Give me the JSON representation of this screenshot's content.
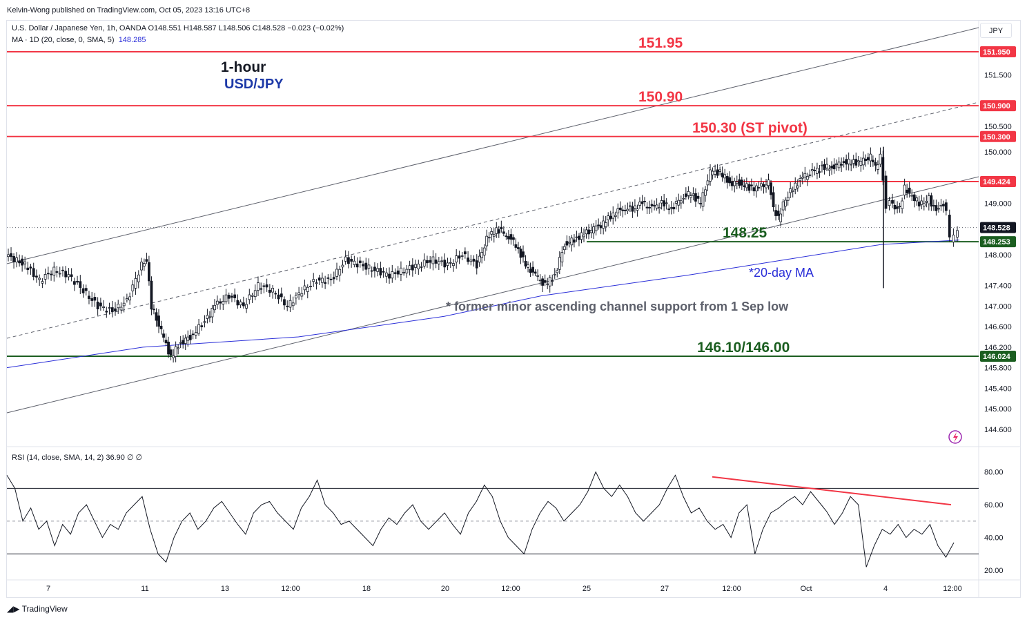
{
  "publisher": "Kelvin-Wong published on TradingView.com, Oct 05, 2023 13:16 UTC+8",
  "legend": {
    "symbol_line": "U.S. Dollar / Japanese Yen, 1h, OANDA  O148.551  H148.587  L148.506  C148.528  −0.023 (−0.02%)",
    "ma_label": "MA · 1D (20, close, 0, SMA, 5)",
    "ma_value": "148.285",
    "rsi_line": "RSI (14, close, SMA, 14, 2)  36.90  ∅  ∅"
  },
  "annotations": {
    "timeframe": "1-hour",
    "symbol": "USD/JPY",
    "currency_button": "JPY",
    "watermark": "TradingView"
  },
  "chart_data": [
    {
      "type": "candlestick",
      "title": "U.S. Dollar / Japanese Yen, 1h, OANDA",
      "ylim": [
        144.4,
        152.3
      ],
      "price_ticks": [
        "151.500",
        "150.500",
        "150.000",
        "149.000",
        "148.000",
        "147.400",
        "147.000",
        "146.600",
        "146.200",
        "145.800",
        "145.400",
        "145.000",
        "144.600"
      ],
      "x_ticks": [
        "7",
        "11",
        "13",
        "12:00",
        "18",
        "20",
        "12:00",
        "25",
        "27",
        "12:00",
        "Oct",
        "4",
        "12:00"
      ],
      "last_price": 148.528,
      "levels": [
        {
          "label": "151.95",
          "value": 151.95,
          "tag": "151.950",
          "color": "#f23645"
        },
        {
          "label": "150.90",
          "value": 150.9,
          "tag": "150.900",
          "color": "#f23645"
        },
        {
          "label": "150.30 (ST pivot)",
          "value": 150.3,
          "tag": "150.300",
          "color": "#f23645"
        },
        {
          "label": "",
          "value": 149.424,
          "tag": "149.424",
          "color": "#f23645"
        },
        {
          "label": "148.25",
          "value": 148.253,
          "tag": "148.253",
          "color": "#1b5e20"
        },
        {
          "label": "146.10/146.00",
          "value": 146.024,
          "tag": "146.024",
          "color": "#1b5e20"
        }
      ],
      "last_price_tag": "148.528",
      "ma_label": "*20-day MA",
      "note": "* former minor ascending channel support from 1 Sep low",
      "series": [
        {
          "name": "USD/JPY",
          "points": [
            [
              0,
              148.0
            ],
            [
              0.02,
              147.8
            ],
            [
              0.035,
              147.5
            ],
            [
              0.05,
              147.7
            ],
            [
              0.065,
              147.6
            ],
            [
              0.08,
              147.3
            ],
            [
              0.095,
              147.0
            ],
            [
              0.11,
              146.9
            ],
            [
              0.125,
              147.1
            ],
            [
              0.14,
              147.8
            ],
            [
              0.145,
              147.9
            ],
            [
              0.15,
              147.0
            ],
            [
              0.16,
              146.5
            ],
            [
              0.17,
              146.0
            ],
            [
              0.18,
              146.3
            ],
            [
              0.19,
              146.4
            ],
            [
              0.205,
              146.7
            ],
            [
              0.215,
              147.0
            ],
            [
              0.23,
              147.2
            ],
            [
              0.245,
              147.0
            ],
            [
              0.26,
              147.4
            ],
            [
              0.275,
              147.3
            ],
            [
              0.29,
              147.0
            ],
            [
              0.305,
              147.3
            ],
            [
              0.32,
              147.5
            ],
            [
              0.335,
              147.5
            ],
            [
              0.35,
              147.9
            ],
            [
              0.365,
              147.8
            ],
            [
              0.38,
              147.7
            ],
            [
              0.395,
              147.6
            ],
            [
              0.41,
              147.7
            ],
            [
              0.425,
              147.8
            ],
            [
              0.44,
              147.9
            ],
            [
              0.455,
              147.8
            ],
            [
              0.47,
              148.0
            ],
            [
              0.485,
              147.8
            ],
            [
              0.495,
              148.3
            ],
            [
              0.505,
              148.5
            ],
            [
              0.515,
              148.4
            ],
            [
              0.525,
              148.2
            ],
            [
              0.535,
              147.8
            ],
            [
              0.545,
              147.6
            ],
            [
              0.555,
              147.4
            ],
            [
              0.565,
              147.6
            ],
            [
              0.575,
              148.2
            ],
            [
              0.585,
              148.3
            ],
            [
              0.595,
              148.4
            ],
            [
              0.605,
              148.5
            ],
            [
              0.615,
              148.6
            ],
            [
              0.625,
              148.8
            ],
            [
              0.635,
              148.9
            ],
            [
              0.645,
              148.9
            ],
            [
              0.655,
              149.0
            ],
            [
              0.665,
              148.9
            ],
            [
              0.675,
              149.0
            ],
            [
              0.685,
              148.9
            ],
            [
              0.695,
              149.1
            ],
            [
              0.705,
              149.2
            ],
            [
              0.715,
              149.0
            ],
            [
              0.725,
              149.6
            ],
            [
              0.735,
              149.6
            ],
            [
              0.745,
              149.4
            ],
            [
              0.755,
              149.4
            ],
            [
              0.765,
              149.3
            ],
            [
              0.775,
              149.3
            ],
            [
              0.785,
              149.4
            ],
            [
              0.79,
              148.9
            ],
            [
              0.795,
              148.7
            ],
            [
              0.8,
              149.0
            ],
            [
              0.81,
              149.3
            ],
            [
              0.82,
              149.5
            ],
            [
              0.83,
              149.6
            ],
            [
              0.84,
              149.7
            ],
            [
              0.85,
              149.7
            ],
            [
              0.86,
              149.8
            ],
            [
              0.87,
              149.8
            ],
            [
              0.88,
              149.8
            ],
            [
              0.89,
              149.9
            ],
            [
              0.895,
              149.7
            ],
            [
              0.9,
              149.9
            ],
            [
              0.903,
              149.5
            ],
            [
              0.906,
              148.9
            ],
            [
              0.91,
              149.0
            ],
            [
              0.915,
              148.9
            ],
            [
              0.92,
              148.9
            ],
            [
              0.925,
              149.3
            ],
            [
              0.93,
              149.2
            ],
            [
              0.935,
              149.1
            ],
            [
              0.94,
              149.0
            ],
            [
              0.945,
              149.0
            ],
            [
              0.95,
              149.1
            ],
            [
              0.955,
              148.9
            ],
            [
              0.96,
              148.9
            ],
            [
              0.965,
              149.0
            ],
            [
              0.968,
              148.8
            ],
            [
              0.972,
              148.3
            ],
            [
              0.976,
              148.4
            ],
            [
              0.98,
              148.53
            ]
          ]
        },
        {
          "name": "20-day MA",
          "points": [
            [
              0,
              145.8
            ],
            [
              0.14,
              146.2
            ],
            [
              0.3,
              146.4
            ],
            [
              0.45,
              146.8
            ],
            [
              0.55,
              147.2
            ],
            [
              0.7,
              147.6
            ],
            [
              0.8,
              147.9
            ],
            [
              0.9,
              148.2
            ],
            [
              0.98,
              148.285
            ]
          ]
        }
      ]
    },
    {
      "type": "line",
      "title": "RSI (14, close, SMA, 14, 2)",
      "ylim": [
        15,
        95
      ],
      "yticks": [
        "80.00",
        "60.00",
        "40.00",
        "20.00"
      ],
      "bands": [
        30,
        50,
        70
      ],
      "last_value": 36.9,
      "series": [
        {
          "name": "RSI",
          "values": [
            78,
            70,
            50,
            58,
            45,
            50,
            35,
            48,
            42,
            55,
            60,
            50,
            40,
            48,
            45,
            55,
            60,
            65,
            45,
            30,
            25,
            40,
            50,
            55,
            45,
            50,
            58,
            62,
            55,
            48,
            42,
            55,
            60,
            62,
            55,
            50,
            45,
            58,
            65,
            75,
            60,
            55,
            48,
            50,
            45,
            40,
            35,
            45,
            52,
            48,
            55,
            60,
            50,
            45,
            50,
            55,
            48,
            42,
            55,
            62,
            72,
            65,
            50,
            40,
            35,
            30,
            45,
            55,
            62,
            58,
            50,
            55,
            60,
            68,
            80,
            70,
            65,
            72,
            65,
            55,
            50,
            55,
            60,
            70,
            78,
            65,
            55,
            58,
            50,
            45,
            48,
            40,
            55,
            60,
            30,
            45,
            55,
            58,
            62,
            65,
            60,
            68,
            62,
            56,
            48,
            55,
            65,
            60,
            22,
            35,
            45,
            42,
            48,
            40,
            45,
            42,
            48,
            35,
            28,
            36.9
          ]
        }
      ],
      "trendline_label": ""
    }
  ]
}
